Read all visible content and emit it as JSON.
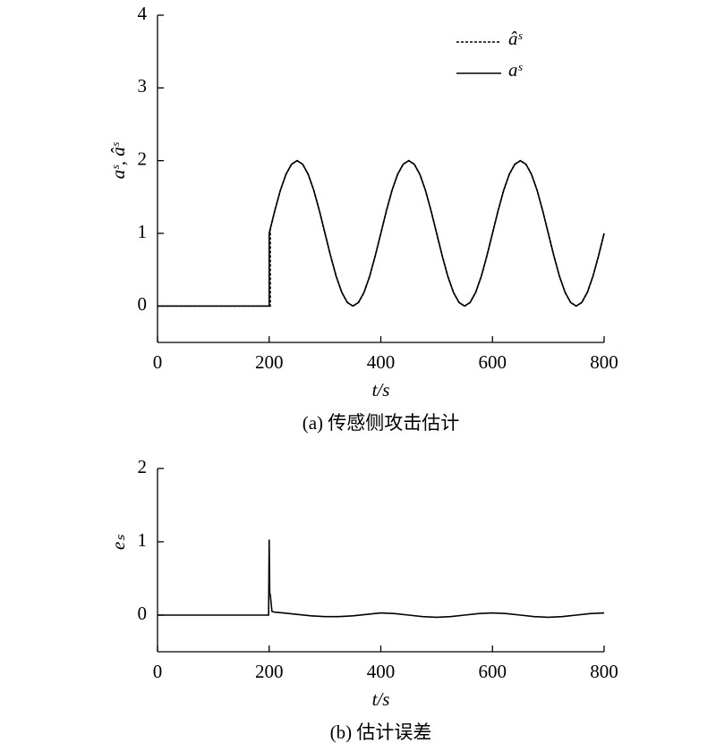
{
  "chart_data": [
    {
      "type": "line",
      "xlabel": "t/s",
      "ylabel": "aˢ, âˢ",
      "caption": "(a) 传感侧攻击估计",
      "xlim": [
        0,
        800
      ],
      "ylim": [
        -0.5,
        4
      ],
      "xticks": [
        0,
        200,
        400,
        600,
        800
      ],
      "yticks": [
        0,
        1,
        2,
        3,
        4
      ],
      "legend": "upper right",
      "series": [
        {
          "name": "âˢ",
          "color": "#000000",
          "style": "dashed",
          "x": [
            0,
            202,
            202,
            210,
            220,
            230,
            240,
            250,
            260,
            270,
            280,
            290,
            300,
            310,
            320,
            330,
            340,
            350,
            360,
            370,
            380,
            390,
            400,
            410,
            420,
            430,
            440,
            450,
            460,
            470,
            480,
            490,
            500,
            510,
            520,
            530,
            540,
            550,
            560,
            570,
            580,
            590,
            600,
            610,
            620,
            630,
            640,
            650,
            660,
            670,
            680,
            690,
            700,
            710,
            720,
            730,
            740,
            750,
            760,
            770,
            780,
            790,
            800
          ],
          "values": [
            0,
            0,
            1.06,
            1.31,
            1.59,
            1.81,
            1.95,
            2,
            1.95,
            1.81,
            1.59,
            1.31,
            1,
            0.69,
            0.41,
            0.19,
            0.05,
            0,
            0.05,
            0.19,
            0.41,
            0.69,
            1,
            1.31,
            1.59,
            1.81,
            1.95,
            2,
            1.95,
            1.81,
            1.59,
            1.31,
            1,
            0.69,
            0.41,
            0.19,
            0.05,
            0,
            0.05,
            0.19,
            0.41,
            0.69,
            1,
            1.31,
            1.59,
            1.81,
            1.95,
            2,
            1.95,
            1.81,
            1.59,
            1.31,
            1,
            0.69,
            0.41,
            0.19,
            0.05,
            0,
            0.05,
            0.19,
            0.41,
            0.69,
            1
          ]
        },
        {
          "name": "aˢ",
          "color": "#000000",
          "style": "solid",
          "x": [
            0,
            200,
            200,
            210,
            220,
            230,
            240,
            250,
            260,
            270,
            280,
            290,
            300,
            310,
            320,
            330,
            340,
            350,
            360,
            370,
            380,
            390,
            400,
            410,
            420,
            430,
            440,
            450,
            460,
            470,
            480,
            490,
            500,
            510,
            520,
            530,
            540,
            550,
            560,
            570,
            580,
            590,
            600,
            610,
            620,
            630,
            640,
            650,
            660,
            670,
            680,
            690,
            700,
            710,
            720,
            730,
            740,
            750,
            760,
            770,
            780,
            790,
            800
          ],
          "values": [
            0,
            0,
            1,
            1.31,
            1.59,
            1.81,
            1.95,
            2,
            1.95,
            1.81,
            1.59,
            1.31,
            1,
            0.69,
            0.41,
            0.19,
            0.05,
            0,
            0.05,
            0.19,
            0.41,
            0.69,
            1,
            1.31,
            1.59,
            1.81,
            1.95,
            2,
            1.95,
            1.81,
            1.59,
            1.31,
            1,
            0.69,
            0.41,
            0.19,
            0.05,
            0,
            0.05,
            0.19,
            0.41,
            0.69,
            1,
            1.31,
            1.59,
            1.81,
            1.95,
            2,
            1.95,
            1.81,
            1.59,
            1.31,
            1,
            0.69,
            0.41,
            0.19,
            0.05,
            0,
            0.05,
            0.19,
            0.41,
            0.69,
            1
          ]
        }
      ]
    },
    {
      "type": "line",
      "xlabel": "t/s",
      "ylabel": "eₛ",
      "caption": "(b) 估计误差",
      "xlim": [
        0,
        800
      ],
      "ylim": [
        -0.5,
        2
      ],
      "xticks": [
        0,
        200,
        400,
        600,
        800
      ],
      "yticks": [
        0,
        1,
        2
      ],
      "x": [
        0,
        199,
        200,
        201,
        202,
        205,
        210,
        225,
        250,
        275,
        300,
        325,
        350,
        375,
        400,
        425,
        450,
        475,
        500,
        525,
        550,
        575,
        600,
        625,
        650,
        675,
        700,
        725,
        750,
        775,
        800
      ],
      "series": [
        {
          "color": "#000000",
          "style": "solid",
          "values": [
            0,
            0,
            1.03,
            0.3,
            0.28,
            0.05,
            0.04,
            0.03,
            0.01,
            -0.01,
            -0.02,
            -0.02,
            -0.01,
            0.01,
            0.03,
            0.02,
            0,
            -0.02,
            -0.03,
            -0.02,
            0,
            0.02,
            0.03,
            0.02,
            0,
            -0.02,
            -0.03,
            -0.02,
            0,
            0.02,
            0.03
          ]
        }
      ]
    }
  ]
}
